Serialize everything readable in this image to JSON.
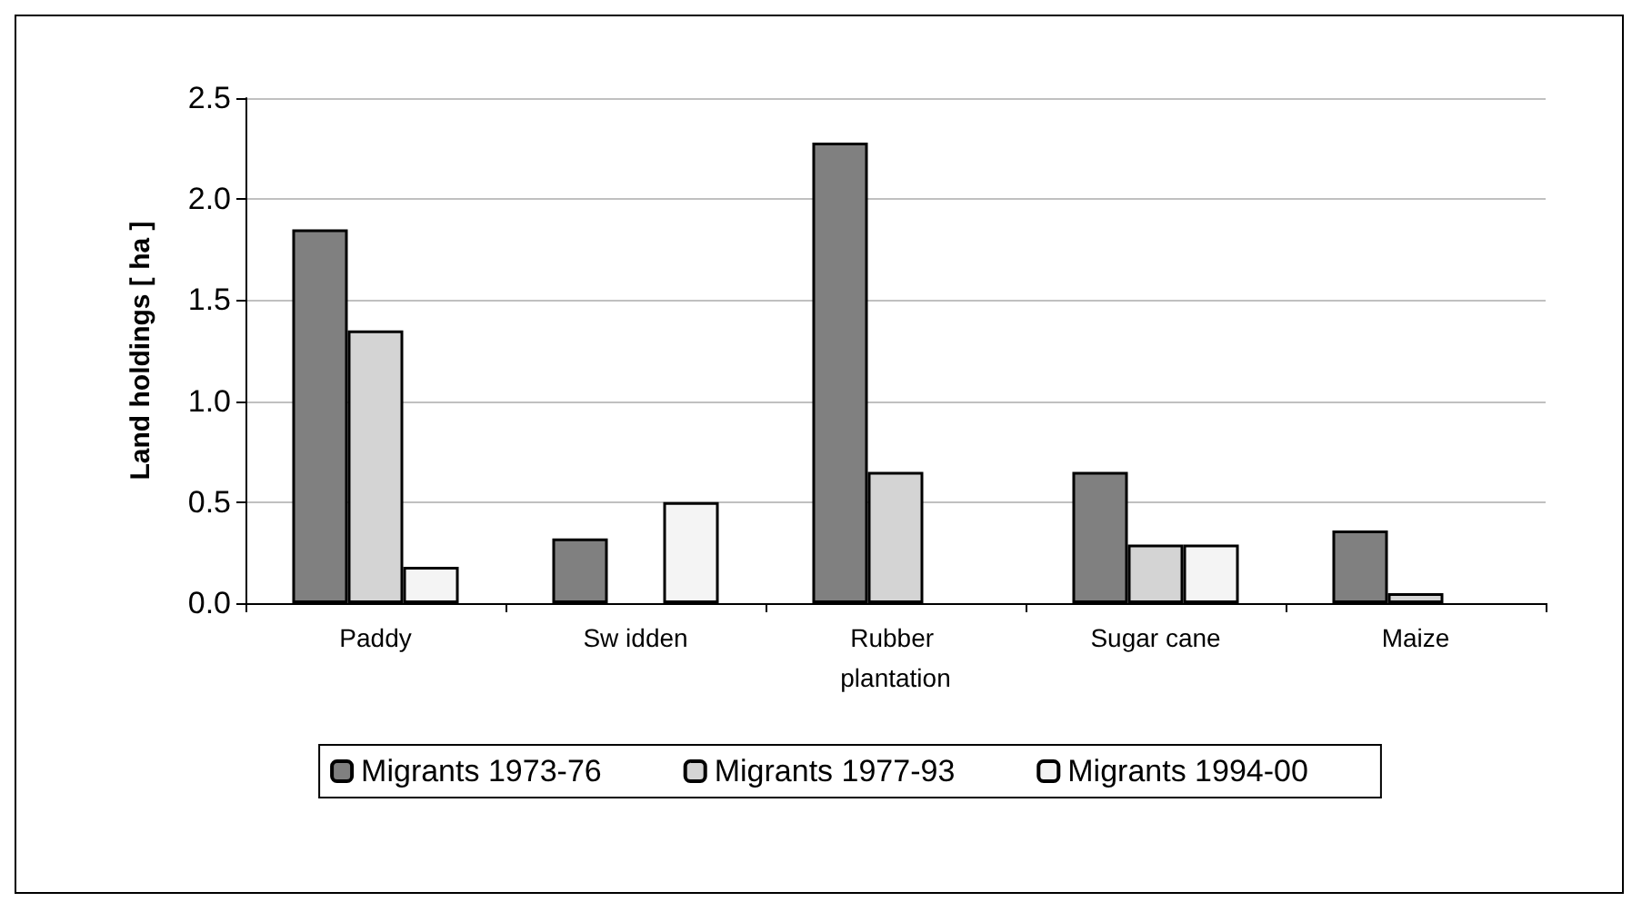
{
  "chart_data": {
    "type": "bar",
    "ylabel": "Land holdings [ ha ]",
    "categories": [
      "Paddy",
      "Sw idden",
      "Rubber plantation",
      "Sugar cane",
      "Maize"
    ],
    "series": [
      {
        "name": "Migrants 1973-76",
        "color": "#808080",
        "values": [
          1.85,
          0.32,
          2.28,
          0.65,
          0.36
        ]
      },
      {
        "name": "Migrants 1977-93",
        "color": "#d4d4d4",
        "values": [
          1.35,
          null,
          0.65,
          0.29,
          0.05
        ]
      },
      {
        "name": "Migrants 1994-00",
        "color": "#f4f4f4",
        "values": [
          0.18,
          0.5,
          null,
          0.29,
          null
        ]
      }
    ],
    "ylim": [
      0,
      2.5
    ],
    "yticks": [
      {
        "value": 0,
        "label": "0.0"
      },
      0.5,
      {
        "value": 1,
        "label": "1.0"
      },
      1.5,
      {
        "value": 2,
        "label": "2.0"
      },
      2.5
    ],
    "grid": "y",
    "legend": "bottom"
  }
}
